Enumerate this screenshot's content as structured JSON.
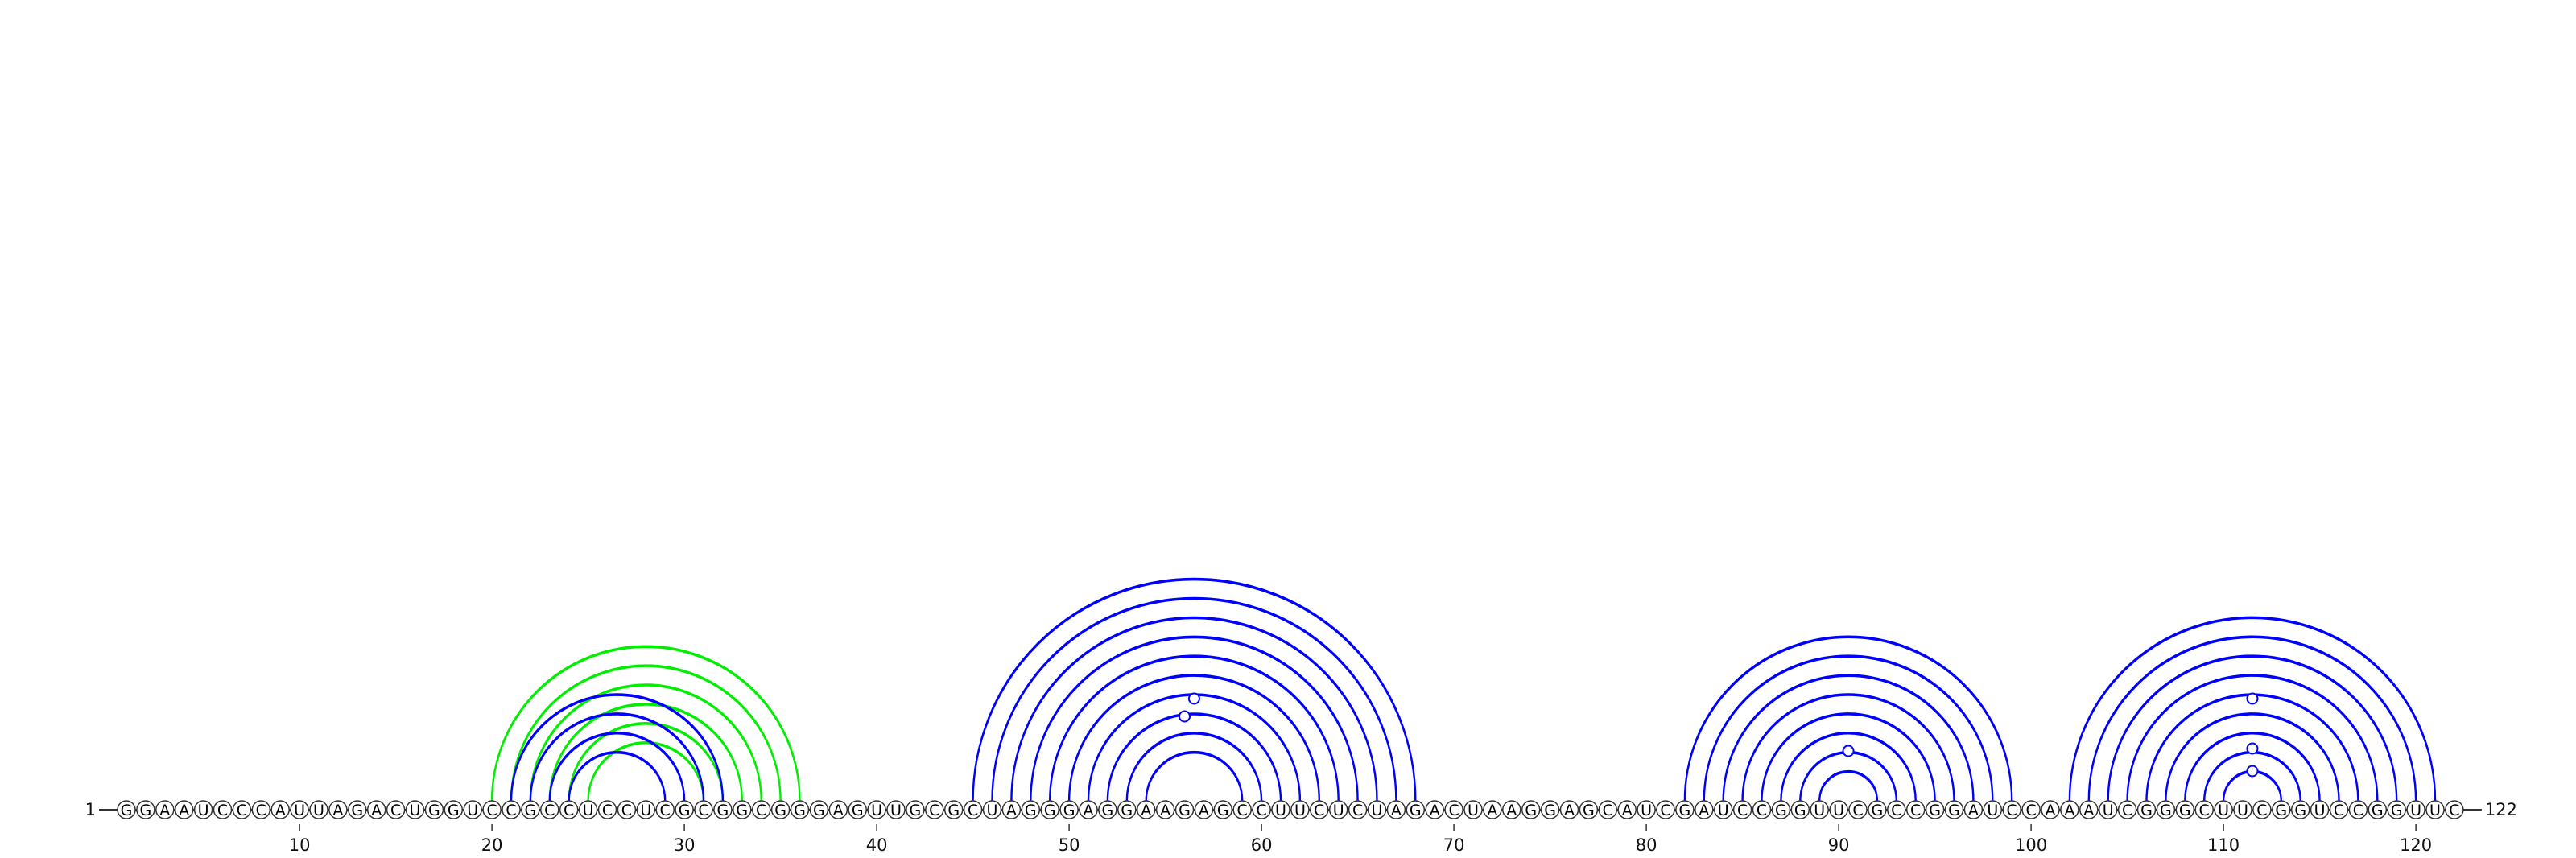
{
  "sequence": "GGAAUCCCAUUAGACUGGUCCGCCUCCUCGCGGCGGGAGUUGCGCUAGGGAGGAAGAGCCUUCUCUAGACUAAGGAGCAUCGAUCCGGUUCGCCGGAUCCAAAUCGGGCUUCGGUCCGGUUC",
  "start_label": "1",
  "end_label": "122",
  "tick_positions": [
    10,
    20,
    30,
    40,
    50,
    60,
    70,
    80,
    90,
    100,
    110,
    120
  ],
  "tick_labels": [
    "10",
    "20",
    "30",
    "40",
    "50",
    "60",
    "70",
    "80",
    "90",
    "100",
    "110",
    "120"
  ],
  "colors": {
    "primary_pairs": "#0000ff",
    "alternate_pairs": "#00ee00",
    "backbone": "#333333",
    "nucleotide_fill": "#ffffff"
  },
  "pair_sets": [
    {
      "color_key": "alternate_pairs",
      "pairs": [
        [
          20,
          36
        ],
        [
          21,
          35
        ],
        [
          22,
          34
        ],
        [
          23,
          33
        ],
        [
          24,
          32
        ],
        [
          25,
          31
        ]
      ]
    },
    {
      "color_key": "primary_pairs",
      "pairs": [
        [
          21,
          32
        ],
        [
          22,
          31
        ],
        [
          23,
          30
        ],
        [
          24,
          29
        ],
        [
          45,
          68
        ],
        [
          46,
          67
        ],
        [
          47,
          66
        ],
        [
          48,
          65
        ],
        [
          49,
          64
        ],
        [
          50,
          63
        ],
        [
          51,
          62
        ],
        [
          52,
          61
        ],
        [
          53,
          60
        ],
        [
          54,
          59
        ],
        [
          82,
          99
        ],
        [
          83,
          98
        ],
        [
          84,
          97
        ],
        [
          85,
          96
        ],
        [
          86,
          95
        ],
        [
          87,
          94
        ],
        [
          88,
          93
        ],
        [
          89,
          92
        ],
        [
          102,
          121
        ],
        [
          103,
          120
        ],
        [
          104,
          119
        ],
        [
          105,
          118
        ],
        [
          106,
          117
        ],
        [
          107,
          116
        ],
        [
          108,
          115
        ],
        [
          109,
          114
        ],
        [
          110,
          113
        ]
      ]
    }
  ],
  "unpaired_markers": [
    56.5,
    56,
    90.5,
    111.5,
    111.5,
    111.5
  ]
}
